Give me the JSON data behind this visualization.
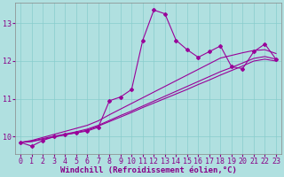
{
  "xlabel": "Windchill (Refroidissement éolien,°C)",
  "ylabel": "",
  "bg_color": "#b0e0e0",
  "grid_color": "#88cccc",
  "line_color": "#990099",
  "xlim": [
    -0.5,
    23.5
  ],
  "ylim": [
    9.55,
    13.55
  ],
  "yticks": [
    10,
    11,
    12,
    13
  ],
  "xticks": [
    0,
    1,
    2,
    3,
    4,
    5,
    6,
    7,
    8,
    9,
    10,
    11,
    12,
    13,
    14,
    15,
    16,
    17,
    18,
    19,
    20,
    21,
    22,
    23
  ],
  "x_data": [
    0,
    1,
    2,
    3,
    4,
    5,
    6,
    7,
    8,
    9,
    10,
    11,
    12,
    13,
    14,
    15,
    16,
    17,
    18,
    19,
    20,
    21,
    22,
    23
  ],
  "y_main": [
    9.85,
    9.75,
    9.9,
    10.0,
    10.05,
    10.1,
    10.15,
    10.25,
    10.95,
    11.05,
    11.25,
    12.55,
    13.35,
    13.25,
    12.55,
    12.3,
    12.1,
    12.25,
    12.4,
    11.85,
    11.8,
    12.25,
    12.45,
    12.05
  ],
  "y_line1": [
    9.85,
    9.87,
    9.93,
    9.99,
    10.05,
    10.11,
    10.17,
    10.28,
    10.4,
    10.52,
    10.64,
    10.77,
    10.89,
    11.01,
    11.13,
    11.25,
    11.38,
    11.5,
    11.63,
    11.75,
    11.87,
    12.0,
    12.05,
    12.0
  ],
  "y_line2": [
    9.85,
    9.88,
    9.95,
    10.01,
    10.07,
    10.13,
    10.2,
    10.3,
    10.43,
    10.56,
    10.68,
    10.81,
    10.94,
    11.07,
    11.2,
    11.33,
    11.46,
    11.59,
    11.72,
    11.83,
    11.95,
    12.07,
    12.12,
    12.05
  ],
  "y_line3": [
    9.85,
    9.9,
    9.98,
    10.06,
    10.14,
    10.22,
    10.3,
    10.42,
    10.58,
    10.73,
    10.88,
    11.03,
    11.18,
    11.33,
    11.48,
    11.63,
    11.78,
    11.93,
    12.08,
    12.15,
    12.22,
    12.28,
    12.3,
    12.2
  ],
  "tick_fontsize": 6,
  "xlabel_fontsize": 6.5
}
